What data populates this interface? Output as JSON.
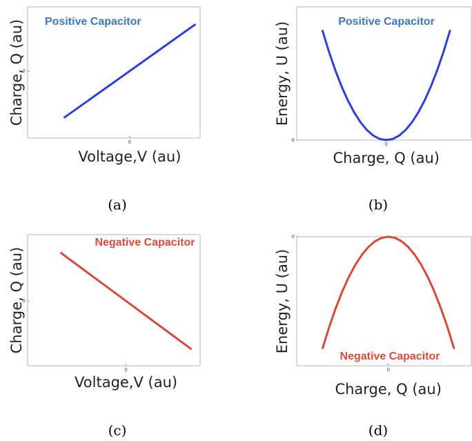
{
  "chart_data": [
    {
      "type": "line",
      "panel_label": "(a)",
      "annotation": "Positive Capacitor",
      "annotation_color": "#3b78c0",
      "x_label": "Voltage,V (au)",
      "y_label": "Charge, Q (au)",
      "color": "#2d3fd8",
      "x": [
        -1,
        1
      ],
      "values": [
        -1,
        1
      ],
      "xlim": [
        -1.55,
        1.07
      ],
      "ylim": [
        -1.43,
        1.37
      ],
      "xticks": [
        0
      ],
      "yticks": [
        0
      ]
    },
    {
      "type": "line",
      "panel_label": "(b)",
      "annotation": "Positive Capacitor",
      "annotation_color": "#3b78c0",
      "x_label": "Charge, Q (au)",
      "y_label": "Energy, U (au)",
      "color": "#2d3fd8",
      "x": [
        -1,
        -0.9,
        -0.8,
        -0.7,
        -0.6,
        -0.5,
        -0.4,
        -0.3,
        -0.2,
        -0.1,
        0,
        0.1,
        0.2,
        0.3,
        0.4,
        0.5,
        0.6,
        0.7,
        0.8,
        0.9,
        1
      ],
      "values": [
        1,
        0.81,
        0.64,
        0.49,
        0.36,
        0.25,
        0.16,
        0.09,
        0.04,
        0.01,
        0,
        0.01,
        0.04,
        0.09,
        0.16,
        0.25,
        0.36,
        0.49,
        0.64,
        0.81,
        1
      ],
      "xlim": [
        -1.4,
        1.33
      ],
      "ylim": [
        0,
        1.21
      ],
      "xticks": [
        0
      ],
      "yticks": [
        0
      ]
    },
    {
      "type": "line",
      "panel_label": "(c)",
      "annotation": "Negative Capacitor",
      "annotation_color": "#e04a3a",
      "x_label": "Voltage,V (au)",
      "y_label": "Charge, Q (au)",
      "color": "#d9463a",
      "x": [
        -1,
        1
      ],
      "values": [
        1,
        -1
      ],
      "xlim": [
        -1.5,
        1.13
      ],
      "ylim": [
        -1.34,
        1.37
      ],
      "xticks": [
        0
      ],
      "yticks": [
        0
      ]
    },
    {
      "type": "line",
      "panel_label": "(d)",
      "annotation": "Negative Capacitor",
      "annotation_color": "#e04a3a",
      "x_label": "Charge, Q (au)",
      "y_label": "Energy, U (au)",
      "color": "#d9463a",
      "x": [
        -1,
        -0.9,
        -0.8,
        -0.7,
        -0.6,
        -0.5,
        -0.4,
        -0.3,
        -0.2,
        -0.1,
        0,
        0.1,
        0.2,
        0.3,
        0.4,
        0.5,
        0.6,
        0.7,
        0.8,
        0.9,
        1
      ],
      "values": [
        -1,
        -0.81,
        -0.64,
        -0.49,
        -0.36,
        -0.25,
        -0.16,
        -0.09,
        -0.04,
        -0.01,
        0,
        -0.01,
        -0.04,
        -0.09,
        -0.16,
        -0.25,
        -0.36,
        -0.49,
        -0.64,
        -0.81,
        -1
      ],
      "xlim": [
        -1.39,
        1.26
      ],
      "ylim": [
        -1.15,
        0
      ],
      "xticks": [
        0
      ],
      "yticks": [
        0
      ]
    }
  ]
}
